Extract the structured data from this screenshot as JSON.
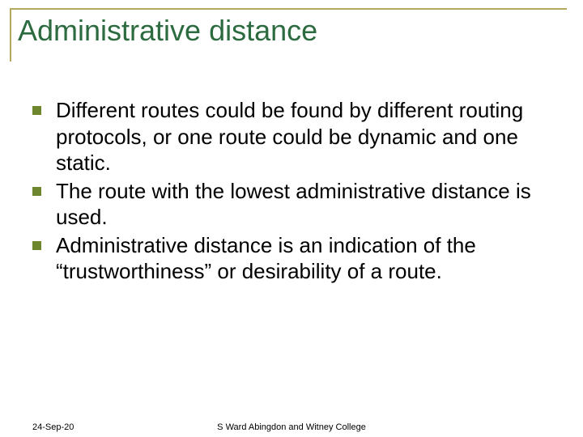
{
  "colors": {
    "title_color": "#2c6b3f",
    "rule_color": "#b6a85a",
    "bullet_color": "#6e872e",
    "body_text": "#000000",
    "background": "#ffffff"
  },
  "typography": {
    "title_fontsize": 36,
    "body_fontsize": 26,
    "footer_fontsize": 11,
    "font_family": "Arial"
  },
  "title": "Administrative distance",
  "bullets": [
    "Different routes could be found by different routing protocols, or one route could be dynamic and one static.",
    "The route with the lowest administrative distance is used.",
    "Administrative distance is an indication of the “trustworthiness” or desirability of a route."
  ],
  "footer": {
    "date": "24-Sep-20",
    "author": "S Ward  Abingdon and Witney College"
  }
}
